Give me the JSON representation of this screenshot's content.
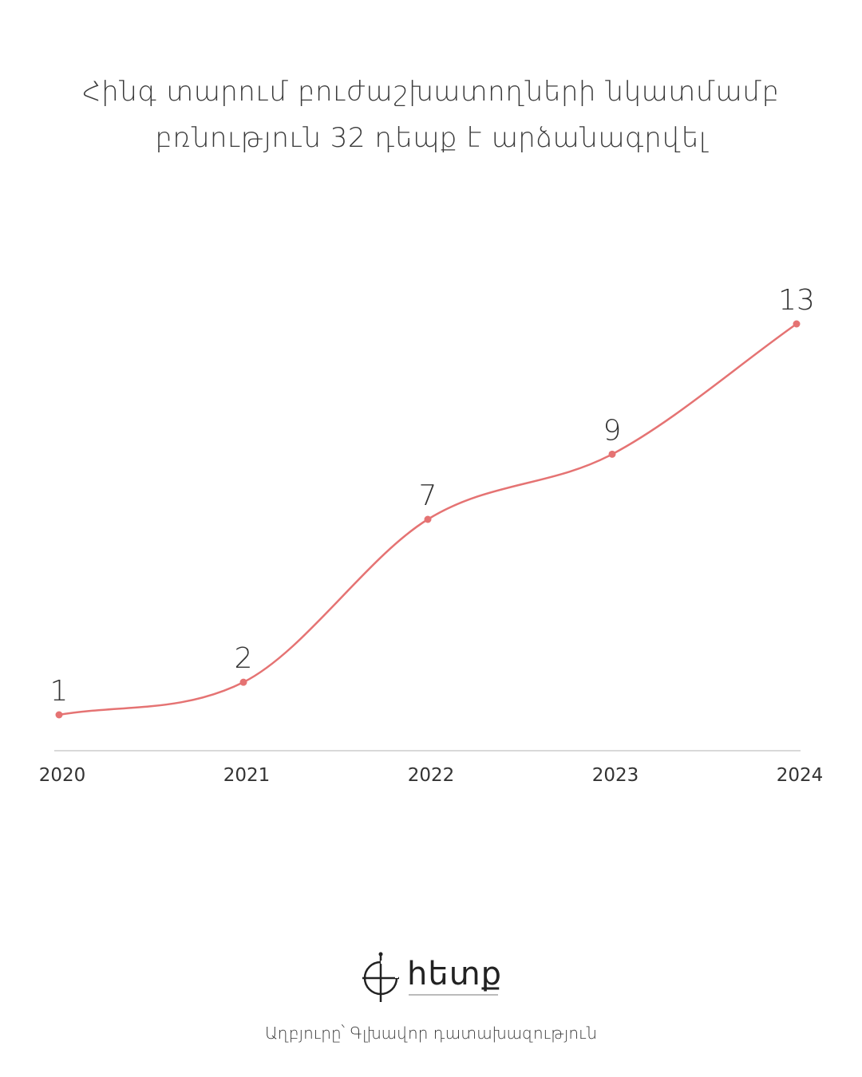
{
  "title_lines": [
    "Հինգ տարում բուժաշխատողների նկատմամբ",
    "բռնություն 32 դեպք է արձանագրվել"
  ],
  "colors": {
    "line": "#e57373",
    "point": "#e57373",
    "axis": "#d9d9d9",
    "text": "#333333"
  },
  "chart_data": {
    "type": "line",
    "title": "Հինգ տարում բուժաշխատողների նկատմամբ բռնություն 32 դեպք է արձանագրվել",
    "categories": [
      "2020",
      "2021",
      "2022",
      "2023",
      "2024"
    ],
    "series": [
      {
        "values": [
          1,
          2,
          7,
          9,
          13
        ]
      }
    ],
    "ylim": [
      0,
      14
    ],
    "grid": false,
    "smooth": true,
    "data_labels": true
  },
  "logo": {
    "wordmark": "hետք",
    "icon": "compass-crosshair-icon"
  },
  "source": "Աղբյուրը՝ Գլխավոր դատախազություն"
}
